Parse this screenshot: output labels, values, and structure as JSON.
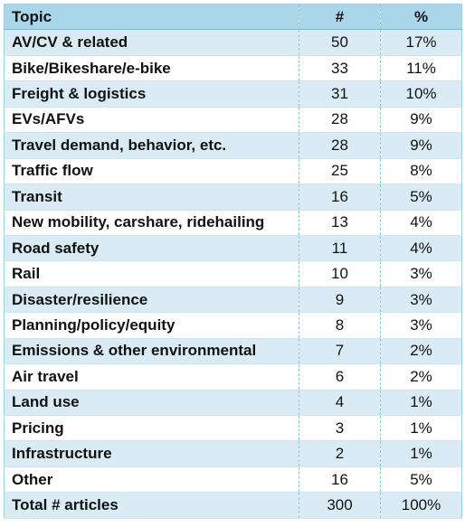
{
  "header": {
    "topic": "Topic",
    "count": "#",
    "percent": "%"
  },
  "rows": [
    {
      "topic": "AV/CV & related",
      "count": "50",
      "percent": "17%"
    },
    {
      "topic": "Bike/Bikeshare/e-bike",
      "count": "33",
      "percent": "11%"
    },
    {
      "topic": "Freight & logistics",
      "count": "31",
      "percent": "10%"
    },
    {
      "topic": "EVs/AFVs",
      "count": "28",
      "percent": "9%"
    },
    {
      "topic": "Travel demand, behavior, etc.",
      "count": "28",
      "percent": "9%"
    },
    {
      "topic": "Traffic flow",
      "count": "25",
      "percent": "8%"
    },
    {
      "topic": "Transit",
      "count": "16",
      "percent": "5%"
    },
    {
      "topic": "New mobility, carshare, ridehailing",
      "count": "13",
      "percent": "4%"
    },
    {
      "topic": "Road safety",
      "count": "11",
      "percent": "4%"
    },
    {
      "topic": "Rail",
      "count": "10",
      "percent": "3%"
    },
    {
      "topic": "Disaster/resilience",
      "count": "9",
      "percent": "3%"
    },
    {
      "topic": "Planning/policy/equity",
      "count": "8",
      "percent": "3%"
    },
    {
      "topic": "Emissions & other environmental",
      "count": "7",
      "percent": "2%"
    },
    {
      "topic": "Air travel",
      "count": "6",
      "percent": "2%"
    },
    {
      "topic": "Land use",
      "count": "4",
      "percent": "1%"
    },
    {
      "topic": "Pricing",
      "count": "3",
      "percent": "1%"
    },
    {
      "topic": "Infrastructure",
      "count": "2",
      "percent": "1%"
    },
    {
      "topic": "Other",
      "count": "16",
      "percent": "5%"
    },
    {
      "topic": "Total # articles",
      "count": "300",
      "percent": "100%"
    }
  ],
  "colors": {
    "header_bg": "#a9d6e9",
    "stripe_bg": "#d9ecf5",
    "plain_bg": "#ffffff"
  }
}
